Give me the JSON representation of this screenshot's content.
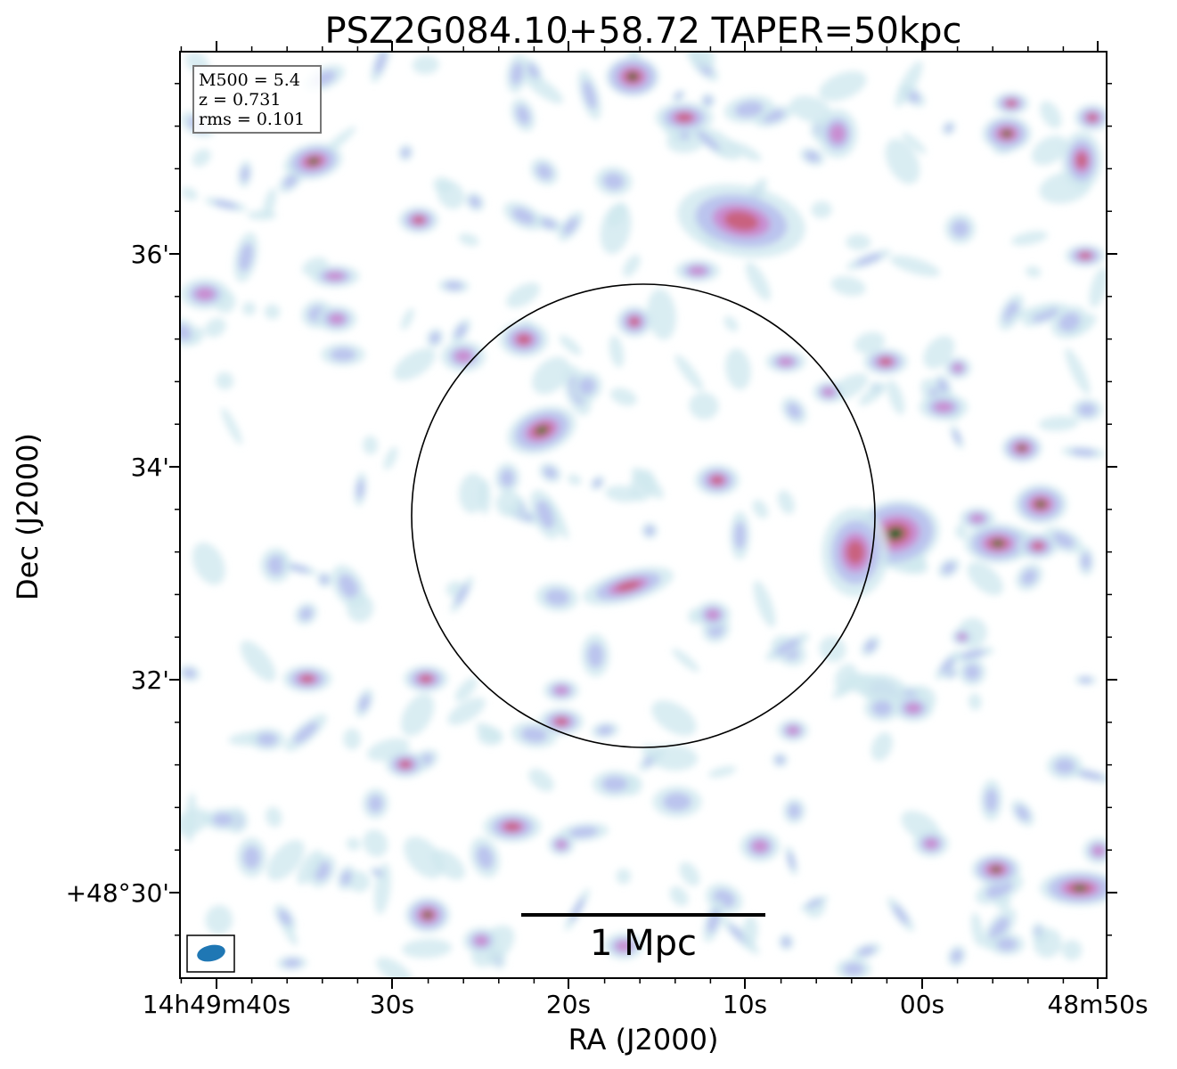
{
  "title": "PSZ2G084.10+58.72 TAPER=50kpc",
  "info_box": {
    "lines": [
      "M500 = 5.4",
      "z = 0.731",
      "rms = 0.101"
    ]
  },
  "scale_bar": {
    "label": "1 Mpc"
  },
  "axes": {
    "xlabel": "RA (J2000)",
    "ylabel": "Dec (J2000)",
    "x_ticks": [
      "14h49m40s",
      "30s",
      "20s",
      "10s",
      "00s",
      "48m50s"
    ],
    "y_ticks": [
      "36'",
      "34'",
      "32'",
      "+48°30'"
    ]
  },
  "image": {
    "colormap": "cubehelix-like (white - light blue - purple - pink - green - black)",
    "circle": "black circle marking cluster region",
    "beam": "blue filled ellipse in bottom-left box"
  },
  "colors": {
    "beam": "#1f77b4",
    "faint": "#cfe9ef",
    "low": "#b9c2ee",
    "mid": "#c98ad0",
    "high": "#c9607a",
    "peak": "#2e7d32",
    "core": "#0a1a1a"
  }
}
